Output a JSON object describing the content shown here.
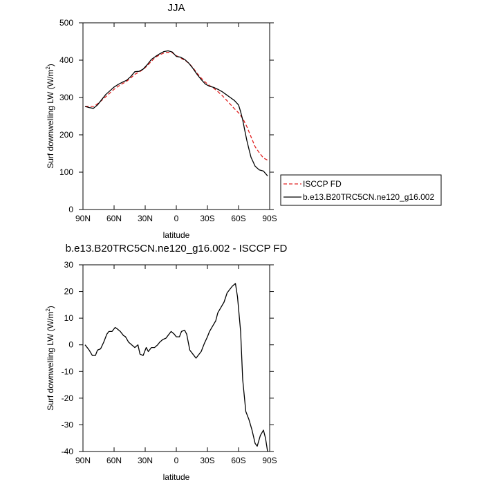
{
  "chart_data": [
    {
      "type": "line",
      "title": "JJA",
      "xlabel": "latitude",
      "ylabel_main": "Surf downwelling LW (W/m",
      "ylabel_sup": "2",
      "ylabel_close": ")",
      "xlim": [
        90,
        -90
      ],
      "ylim": [
        0,
        500
      ],
      "xticks": [
        {
          "value": 90,
          "label": "90N"
        },
        {
          "value": 60,
          "label": "60N"
        },
        {
          "value": 30,
          "label": "30N"
        },
        {
          "value": 0,
          "label": "0"
        },
        {
          "value": -30,
          "label": "30S"
        },
        {
          "value": -60,
          "label": "60S"
        },
        {
          "value": -90,
          "label": "90S"
        }
      ],
      "yticks": [
        {
          "value": 0,
          "label": "0"
        },
        {
          "value": 100,
          "label": "100"
        },
        {
          "value": 200,
          "label": "200"
        },
        {
          "value": 300,
          "label": "300"
        },
        {
          "value": 400,
          "label": "400"
        },
        {
          "value": 500,
          "label": "500"
        }
      ],
      "legend_position": "outside-right",
      "series": [
        {
          "name": "ISCCP FD",
          "color": "#e02020",
          "dash": "dashed",
          "x": [
            88,
            84,
            80,
            76,
            72,
            68,
            64,
            60,
            56,
            52,
            48,
            44,
            40,
            36,
            32,
            28,
            24,
            20,
            16,
            12,
            8,
            4,
            0,
            -4,
            -8,
            -12,
            -16,
            -20,
            -24,
            -28,
            -32,
            -36,
            -40,
            -44,
            -48,
            -52,
            -56,
            -60,
            -64,
            -68,
            -72,
            -76,
            -80,
            -84,
            -88
          ],
          "y": [
            276,
            277,
            276,
            283,
            292,
            302,
            312,
            322,
            330,
            337,
            343,
            352,
            362,
            368,
            375,
            385,
            397,
            408,
            414,
            419,
            421,
            420,
            412,
            406,
            400,
            392,
            380,
            365,
            352,
            341,
            332,
            325,
            316,
            306,
            294,
            282,
            270,
            259,
            244,
            222,
            195,
            168,
            152,
            138,
            132
          ]
        },
        {
          "name": "b.e13.B20TRC5CN.ne120_g16.002",
          "color": "#000000",
          "dash": "solid",
          "x": [
            88,
            84,
            80,
            76,
            72,
            68,
            64,
            60,
            56,
            52,
            48,
            44,
            40,
            36,
            32,
            28,
            24,
            20,
            16,
            12,
            8,
            4,
            0,
            -4,
            -8,
            -12,
            -16,
            -20,
            -24,
            -28,
            -32,
            -36,
            -40,
            -44,
            -48,
            -52,
            -56,
            -60,
            -62,
            -64,
            -66,
            -68,
            -70,
            -72,
            -76,
            -80,
            -84,
            -88
          ],
          "y": [
            276,
            273,
            271,
            280,
            294,
            308,
            318,
            328,
            335,
            341,
            346,
            356,
            369,
            370,
            376,
            388,
            402,
            410,
            417,
            423,
            425,
            422,
            410,
            408,
            402,
            392,
            378,
            362,
            348,
            336,
            330,
            327,
            322,
            316,
            308,
            300,
            292,
            280,
            262,
            240,
            212,
            185,
            162,
            140,
            116,
            106,
            103,
            90
          ]
        }
      ]
    },
    {
      "type": "line",
      "title": "b.e13.B20TRC5CN.ne120_g16.002 - ISCCP FD",
      "xlabel": "latitude",
      "ylabel_main": "Surf downwelling LW (W/m",
      "ylabel_sup": "2",
      "ylabel_close": ")",
      "xlim": [
        90,
        -90
      ],
      "ylim": [
        -40,
        30
      ],
      "xticks": [
        {
          "value": 90,
          "label": "90N"
        },
        {
          "value": 60,
          "label": "60N"
        },
        {
          "value": 30,
          "label": "30N"
        },
        {
          "value": 0,
          "label": "0"
        },
        {
          "value": -30,
          "label": "30S"
        },
        {
          "value": -60,
          "label": "60S"
        },
        {
          "value": -90,
          "label": "90S"
        }
      ],
      "yticks": [
        {
          "value": -40,
          "label": "-40"
        },
        {
          "value": -30,
          "label": "-30"
        },
        {
          "value": -20,
          "label": "-20"
        },
        {
          "value": -10,
          "label": "-10"
        },
        {
          "value": 0,
          "label": "0"
        },
        {
          "value": 10,
          "label": "10"
        },
        {
          "value": 20,
          "label": "20"
        },
        {
          "value": 30,
          "label": "30"
        }
      ],
      "series": [
        {
          "color": "#000000",
          "dash": "solid",
          "x": [
            88,
            84,
            81,
            78,
            76,
            73,
            70,
            67,
            65,
            62,
            59,
            57,
            54,
            51,
            49,
            46,
            43,
            40,
            37,
            35,
            32,
            29,
            27,
            24,
            21,
            18,
            16,
            13,
            10,
            8,
            5,
            2,
            0,
            -3,
            -5,
            -8,
            -10,
            -13,
            -16,
            -19,
            -21,
            -24,
            -27,
            -30,
            -32,
            -35,
            -38,
            -40,
            -43,
            -46,
            -49,
            -51,
            -54,
            -57,
            -59,
            -62,
            -64,
            -67,
            -70,
            -73,
            -76,
            -78,
            -81,
            -84,
            -86,
            -88
          ],
          "y": [
            0,
            -2,
            -4,
            -4,
            -2,
            -1.5,
            1,
            4,
            5,
            5,
            6.5,
            6,
            5,
            3.5,
            3,
            1,
            0,
            -1,
            0,
            -3.5,
            -4,
            -1,
            -2.5,
            -1,
            -1,
            0,
            1,
            2,
            2.5,
            3.5,
            5,
            4,
            3,
            3,
            5,
            5.5,
            4,
            -2,
            -3.5,
            -5,
            -4,
            -2.5,
            0.5,
            3,
            5,
            7,
            9,
            12,
            14,
            16,
            19.5,
            20.5,
            22,
            23,
            18,
            5,
            -13,
            -25,
            -28,
            -32,
            -37,
            -38,
            -34,
            -32,
            -35,
            -40
          ]
        }
      ]
    }
  ]
}
